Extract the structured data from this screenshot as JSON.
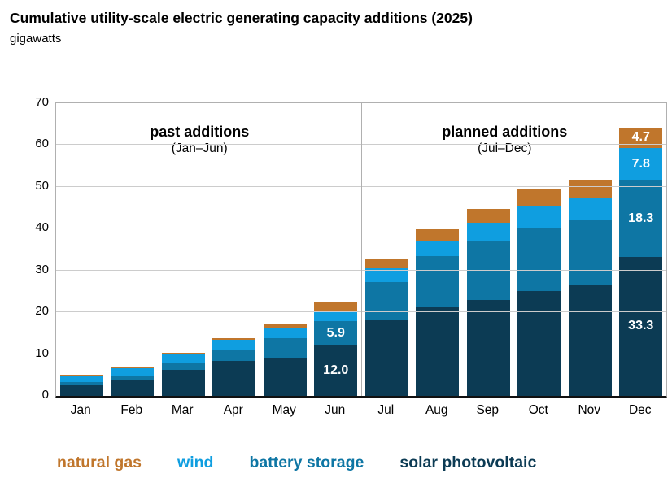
{
  "header": {
    "title": "Cumulative utility-scale electric generating capacity additions (2025)",
    "subtitle": "gigawatts"
  },
  "annotations": {
    "past": {
      "title": "past additions",
      "sub": "(Jan–Jun)"
    },
    "planned": {
      "title": "planned additions",
      "sub": "(Jul–Dec)"
    }
  },
  "legend": [
    {
      "label": "natural gas",
      "color": "#c0762c"
    },
    {
      "label": "wind",
      "color": "#0f9ee0"
    },
    {
      "label": "battery storage",
      "color": "#0e76a4"
    },
    {
      "label": "solar photovoltaic",
      "color": "#0c3b54"
    }
  ],
  "chart_data": {
    "type": "bar",
    "stacked": true,
    "values_are_cumulative": true,
    "title": "Cumulative utility-scale electric generating capacity additions (2025)",
    "ylabel": "gigawatts",
    "categories": [
      "Jan",
      "Feb",
      "Mar",
      "Apr",
      "May",
      "Jun",
      "Jul",
      "Aug",
      "Sep",
      "Oct",
      "Nov",
      "Dec"
    ],
    "series": [
      {
        "name": "solar photovoltaic",
        "color": "#0c3b54",
        "values": [
          2.8,
          3.8,
          6.3,
          8.3,
          9.0,
          12.0,
          18.0,
          21.2,
          23.0,
          25.0,
          26.4,
          33.3
        ]
      },
      {
        "name": "battery storage",
        "color": "#0e76a4",
        "values": [
          0.5,
          0.8,
          1.6,
          2.8,
          4.9,
          5.9,
          9.3,
          12.2,
          14.0,
          15.0,
          15.6,
          18.3
        ]
      },
      {
        "name": "wind",
        "color": "#0f9ee0",
        "values": [
          1.6,
          2.0,
          2.2,
          2.3,
          2.3,
          2.3,
          3.2,
          3.6,
          4.4,
          5.5,
          5.5,
          7.8
        ]
      },
      {
        "name": "natural gas",
        "color": "#c0762c",
        "values": [
          0.1,
          0.2,
          0.2,
          0.4,
          1.2,
          2.2,
          2.3,
          2.9,
          3.4,
          3.9,
          4.1,
          4.7
        ]
      }
    ],
    "totals": [
      5.0,
      6.8,
      10.3,
      13.8,
      17.4,
      22.4,
      32.8,
      39.9,
      44.8,
      49.4,
      51.6,
      64.1
    ],
    "ylim": [
      0,
      70
    ],
    "yticks": [
      0,
      10,
      20,
      30,
      40,
      50,
      60,
      70
    ],
    "grid": true,
    "legend_position": "bottom",
    "divider_after_category": "Jun",
    "segment_labels": [
      {
        "category": "Jun",
        "series": "solar photovoltaic",
        "text": "12.0"
      },
      {
        "category": "Jun",
        "series": "battery storage",
        "text": "5.9"
      },
      {
        "category": "Dec",
        "series": "solar photovoltaic",
        "text": "33.3"
      },
      {
        "category": "Dec",
        "series": "battery storage",
        "text": "18.3"
      },
      {
        "category": "Dec",
        "series": "wind",
        "text": "7.8"
      },
      {
        "category": "Dec",
        "series": "natural gas",
        "text": "4.7"
      }
    ]
  }
}
